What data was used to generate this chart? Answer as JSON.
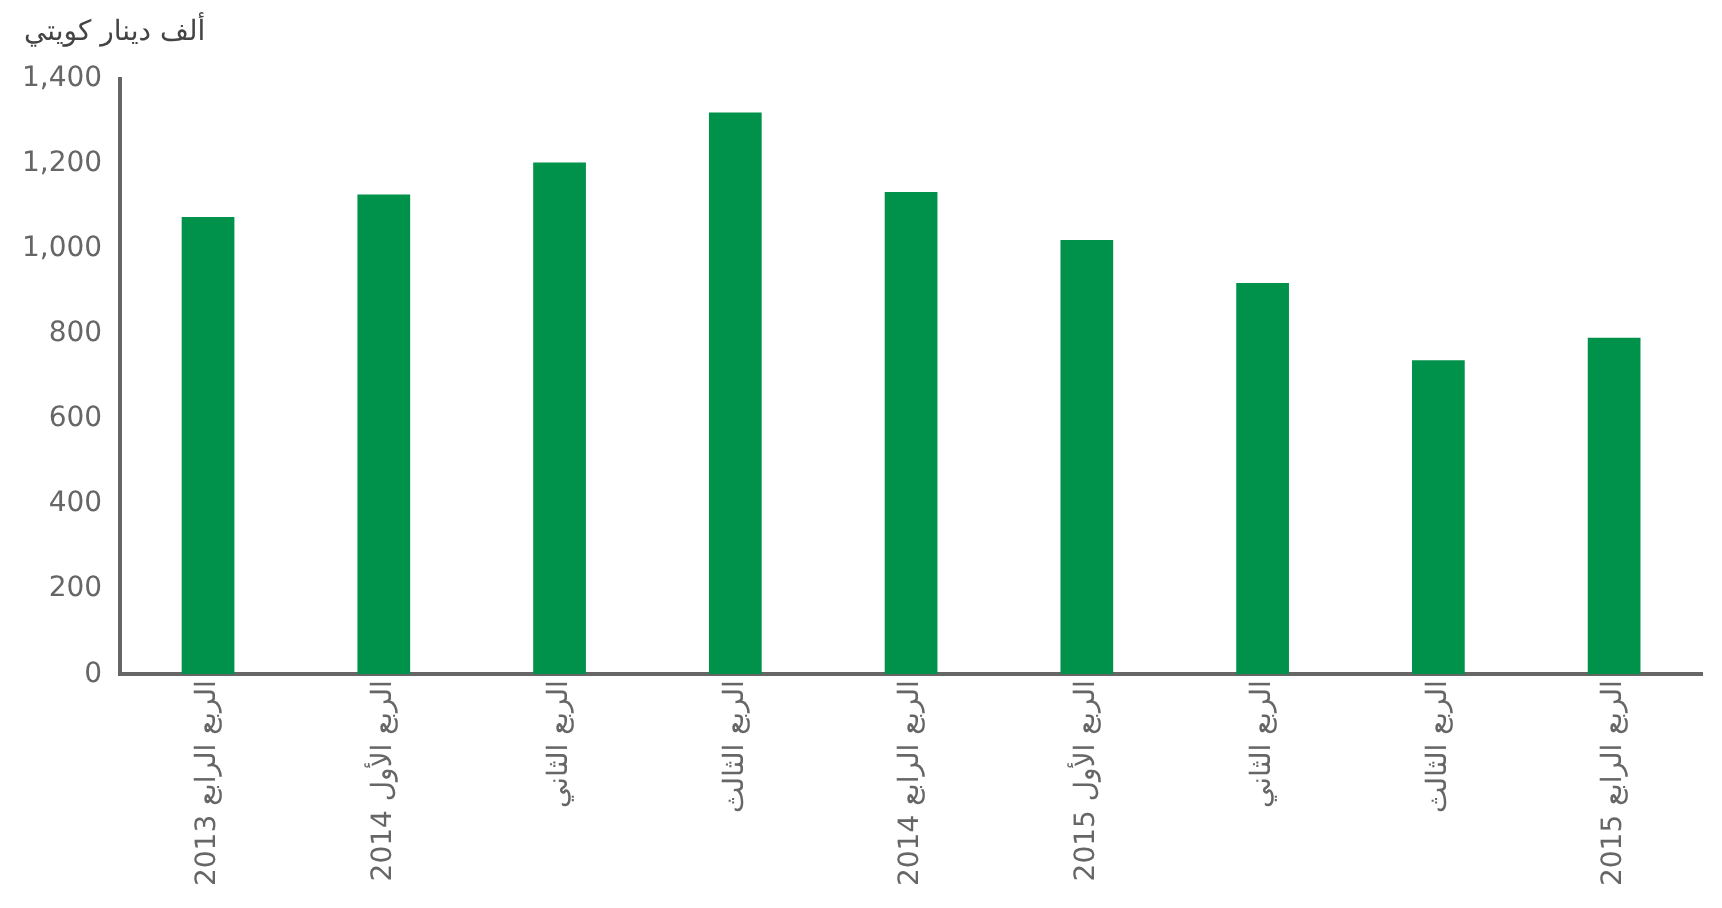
{
  "chart_data": {
    "type": "bar",
    "ylabel": "ألف دينار كويتي",
    "categories": [
      "الربع الرابع 2013",
      "الربع الأول 2014",
      "الربع الثاني",
      "الربع الثالث",
      "الربع الرابع 2014",
      "الربع الأول 2015",
      "الربع الثاني",
      "الربع الثالث",
      "الربع الرابع 2015"
    ],
    "values": [
      1075,
      1128,
      1203,
      1321,
      1134,
      1021,
      920,
      738,
      791
    ],
    "color": "#00914a",
    "ylim": [
      0,
      1400
    ],
    "yticks": [
      0,
      200,
      400,
      600,
      800,
      {
        "value": 1000,
        "label": "1,000"
      },
      {
        "value": 1200,
        "label": "1,200"
      },
      {
        "value": 1400,
        "label": "1,400"
      }
    ],
    "grid": false,
    "legend": false
  }
}
